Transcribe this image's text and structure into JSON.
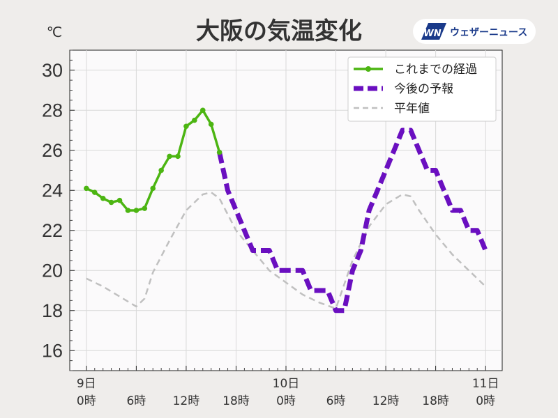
{
  "title": "大阪の気温変化",
  "unit_label": "℃",
  "logo": {
    "mark": "WN",
    "text": "ウェザーニュース"
  },
  "colors": {
    "observed": "#4cb512",
    "forecast": "#6a0fc0",
    "normal": "#c0c0c0"
  },
  "chart_data": {
    "type": "line",
    "xlabel": "",
    "ylabel": "℃",
    "ylim": [
      15,
      31
    ],
    "xlim": [
      -2,
      50
    ],
    "grid": true,
    "legend_position": "top-right",
    "y_ticks": [
      16,
      18,
      20,
      22,
      24,
      26,
      28,
      30
    ],
    "x_ticks": [
      {
        "x": 0,
        "day": "9日",
        "time": "0時"
      },
      {
        "x": 6,
        "day": "",
        "time": "6時"
      },
      {
        "x": 12,
        "day": "",
        "time": "12時"
      },
      {
        "x": 18,
        "day": "",
        "time": "18時"
      },
      {
        "x": 24,
        "day": "10日",
        "time": "0時"
      },
      {
        "x": 30,
        "day": "",
        "time": "6時"
      },
      {
        "x": 36,
        "day": "",
        "time": "12時"
      },
      {
        "x": 42,
        "day": "",
        "time": "18時"
      },
      {
        "x": 48,
        "day": "11日",
        "time": "0時"
      }
    ],
    "series": [
      {
        "name": "これまでの経過",
        "style": "solid-markers",
        "x": [
          0,
          1,
          2,
          3,
          4,
          5,
          6,
          7,
          8,
          9,
          10,
          11,
          12,
          13,
          14,
          15,
          16
        ],
        "y": [
          24.1,
          23.9,
          23.6,
          23.4,
          23.5,
          23.0,
          23.0,
          23.1,
          24.1,
          25.0,
          25.7,
          25.7,
          27.2,
          27.5,
          28.0,
          27.3,
          25.9
        ]
      },
      {
        "name": "今後の予報",
        "style": "dashed-thick",
        "x": [
          16,
          17,
          18,
          19,
          20,
          21,
          22,
          23,
          24,
          25,
          26,
          27,
          28,
          29,
          30,
          31,
          32,
          33,
          34,
          35,
          36,
          37,
          38,
          39,
          40,
          41,
          42,
          43,
          44,
          45,
          46,
          47,
          48
        ],
        "y": [
          25.9,
          24.0,
          23.0,
          22.0,
          21.0,
          21.0,
          21.0,
          20.0,
          20.0,
          20.0,
          20.0,
          19.0,
          19.0,
          19.0,
          18.0,
          18.0,
          20.0,
          21.0,
          23.0,
          24.0,
          25.0,
          26.0,
          27.0,
          27.0,
          26.0,
          25.0,
          25.0,
          24.0,
          23.0,
          23.0,
          22.0,
          22.0,
          21.0
        ]
      },
      {
        "name": "平年値",
        "style": "dashed-thin",
        "x": [
          0,
          2,
          4,
          6,
          7,
          8,
          10,
          12,
          14,
          15,
          16,
          18,
          20,
          22,
          24,
          26,
          28,
          30,
          32,
          34,
          36,
          38,
          39,
          40,
          42,
          44,
          46,
          48
        ],
        "y": [
          19.6,
          19.2,
          18.7,
          18.2,
          18.6,
          19.9,
          21.5,
          23.0,
          23.8,
          23.9,
          23.6,
          22.0,
          21.0,
          20.0,
          19.4,
          18.8,
          18.4,
          18.1,
          20.5,
          22.2,
          23.3,
          23.8,
          23.7,
          23.0,
          21.8,
          20.8,
          20.0,
          19.2
        ]
      }
    ]
  }
}
